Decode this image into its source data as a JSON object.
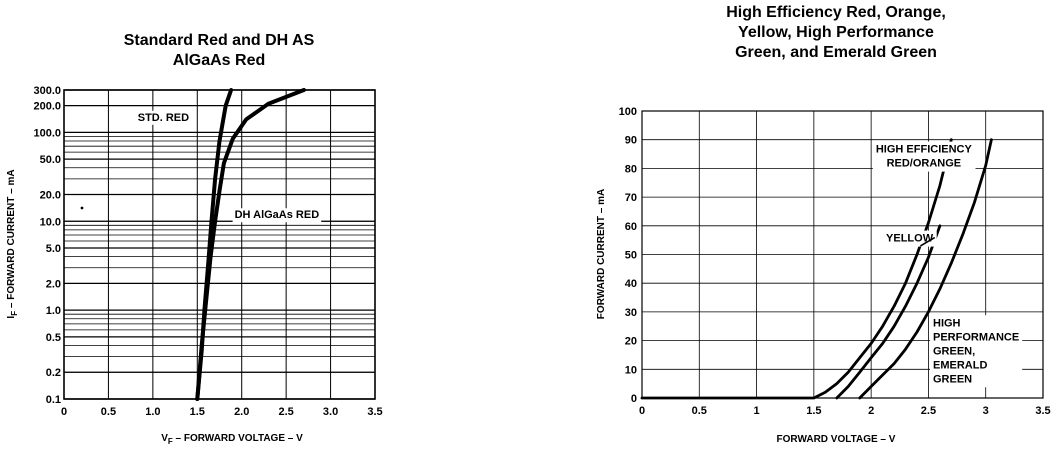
{
  "chart_data": [
    {
      "type": "line",
      "title_lines": [
        "Standard Red and DH AS",
        "AlGaAs Red"
      ],
      "xlabel": "V",
      "xlabel_sub": "F",
      "xlabel_rest": " – FORWARD VOLTAGE – V",
      "ylabel": "I",
      "ylabel_sub": "F",
      "ylabel_rest": " – FORWARD CURRENT – mA",
      "y_scale": "log",
      "xlim": [
        0,
        3.5
      ],
      "ylim": [
        0.1,
        300
      ],
      "x_ticks": [
        "0",
        "0.5",
        "1.0",
        "1.5",
        "2.0",
        "2.5",
        "3.0",
        "3.5"
      ],
      "y_ticks": [
        {
          "value": 300,
          "label": "300.0"
        },
        {
          "value": 200,
          "label": "200.0"
        },
        {
          "value": 100,
          "label": "100.0"
        },
        {
          "value": 50,
          "label": "50.0"
        },
        {
          "value": 20,
          "label": "20.0"
        },
        {
          "value": 10,
          "label": "10.0"
        },
        {
          "value": 5,
          "label": "5.0"
        },
        {
          "value": 2,
          "label": "2.0"
        },
        {
          "value": 1,
          "label": "1.0"
        },
        {
          "value": 0.5,
          "label": "0.5"
        },
        {
          "value": 0.2,
          "label": "0.2"
        },
        {
          "value": 0.1,
          "label": "0.1"
        }
      ],
      "grid": true,
      "series": [
        {
          "name": "STD. RED",
          "x": [
            1.5,
            1.55,
            1.58,
            1.62,
            1.66,
            1.7,
            1.75,
            1.82,
            1.88
          ],
          "y": [
            0.1,
            0.35,
            1,
            3,
            10,
            30,
            80,
            200,
            300
          ]
        },
        {
          "name": "DH AlGaAs RED",
          "x": [
            1.5,
            1.55,
            1.6,
            1.65,
            1.7,
            1.75,
            1.8,
            1.9,
            2.05,
            2.3,
            2.7
          ],
          "y": [
            0.1,
            0.4,
            1.3,
            4,
            10,
            22,
            45,
            85,
            140,
            210,
            300
          ]
        }
      ],
      "annotations": [
        {
          "text": "STD. RED",
          "x": 0.83,
          "y": 150
        },
        {
          "text": "DH AlGaAs RED",
          "x": 1.92,
          "y": 12
        }
      ]
    },
    {
      "type": "line",
      "title_lines": [
        "High Efficiency Red, Orange,",
        "Yellow, High Performance",
        "Green, and Emerald Green"
      ],
      "xlabel": "FORWARD VOLTAGE – V",
      "ylabel": "FORWARD CURRENT – mA",
      "xlim": [
        0,
        3.5
      ],
      "ylim": [
        0,
        100
      ],
      "x_ticks": [
        "0",
        "0.5",
        "1",
        "1.5",
        "2",
        "2.5",
        "3",
        "3.5"
      ],
      "y_ticks": [
        "0",
        "10",
        "20",
        "30",
        "40",
        "50",
        "60",
        "70",
        "80",
        "90",
        "100"
      ],
      "grid": true,
      "series": [
        {
          "name": "HIGH EFFICIENCY RED/ORANGE",
          "x": [
            0,
            1.5,
            1.6,
            1.7,
            1.8,
            1.9,
            2.0,
            2.1,
            2.2,
            2.3,
            2.4,
            2.5,
            2.6,
            2.7
          ],
          "y": [
            0,
            0,
            2,
            5,
            9,
            14,
            19,
            25,
            32,
            40,
            50,
            61,
            74,
            90
          ]
        },
        {
          "name": "YELLOW",
          "x": [
            1.7,
            1.8,
            1.9,
            2.0,
            2.1,
            2.2,
            2.3,
            2.4,
            2.5,
            2.6
          ],
          "y": [
            0,
            4,
            9,
            14,
            19,
            25,
            32,
            40,
            49,
            60
          ]
        },
        {
          "name": "HIGH PERFORMANCE GREEN, EMERALD GREEN",
          "x": [
            1.9,
            2.0,
            2.1,
            2.2,
            2.3,
            2.4,
            2.5,
            2.6,
            2.7,
            2.8,
            2.9,
            3.0,
            3.05
          ],
          "y": [
            0,
            4,
            8,
            12,
            17,
            23,
            30,
            38,
            47,
            57,
            68,
            81,
            90
          ]
        }
      ],
      "annotations": [
        {
          "lines": [
            "HIGH EFFICIENCY",
            "RED/ORANGE"
          ],
          "x": 2.46,
          "y": 85.5
        },
        {
          "lines": [
            "YELLOW"
          ],
          "x": 2.13,
          "y": 54.5
        },
        {
          "lines": [
            "HIGH",
            "PERFORMANCE",
            "GREEN,",
            "EMERALD",
            "GREEN"
          ],
          "x": 2.54,
          "y": 25
        }
      ]
    }
  ]
}
